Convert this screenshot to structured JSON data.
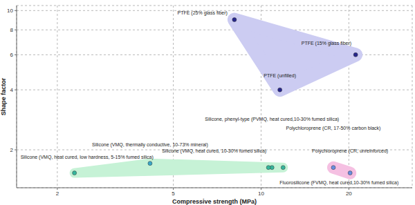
{
  "chart_data": {
    "type": "scatter",
    "x_label": "Compressive strength (MPa)",
    "y_label": "Shape factor",
    "log": true,
    "grid": true,
    "xlim": [
      1.45,
      33
    ],
    "ylim": [
      1.29,
      10.6
    ],
    "xticks": [
      2,
      5,
      10,
      20
    ],
    "yticks": [
      2,
      4,
      6,
      8,
      10
    ],
    "series": [
      {
        "color": "#ccccf2",
        "labels": [
          "PTFE (25% glass fiber)",
          "PTFE (15% glass fiber)",
          "PTFE (unfilled)"
        ],
        "x": [
          8.1,
          21.1,
          11.6
        ],
        "y": [
          9.0,
          6.0,
          4.0
        ],
        "colors": [
          "#26268c",
          "#26268c",
          "#26268c"
        ]
      },
      {
        "color": "#f5c0e2",
        "labels": [
          "Polychloroprene (CR, 17-50% carbon black)",
          "Polychloroprene (CR, unreinforced)"
        ],
        "x": [
          17.7,
          20.2
        ],
        "y": [
          1.63,
          1.53
        ],
        "colors": [
          "#6a8ee0",
          "#6a8ee0"
        ]
      },
      {
        "color": "#c6f2d6",
        "labels": [
          "Silicone, phenyl-type (PVMQ, heat cured,10-30% fumed silica)",
          "Silicone (VMQ, heat cured, 10-30% fumed silica)",
          "Fluorosilicone (FVMQ, heat cured,10-30% fumed silica)",
          "Silicone (VMQ, thermally conductive, 10-73% mineral)",
          "Silicone (VMQ, heat cured, low hardness, 5-15% fumed silica)"
        ],
        "x": [
          10.9,
          10.6,
          11.9,
          4.16,
          2.29
        ],
        "y": [
          1.63,
          1.63,
          1.63,
          1.71,
          1.53
        ],
        "colors": [
          "#35b69c",
          "#35b69c",
          "#35b69c",
          "#3aa7c8",
          "#35b69c"
        ]
      }
    ]
  }
}
